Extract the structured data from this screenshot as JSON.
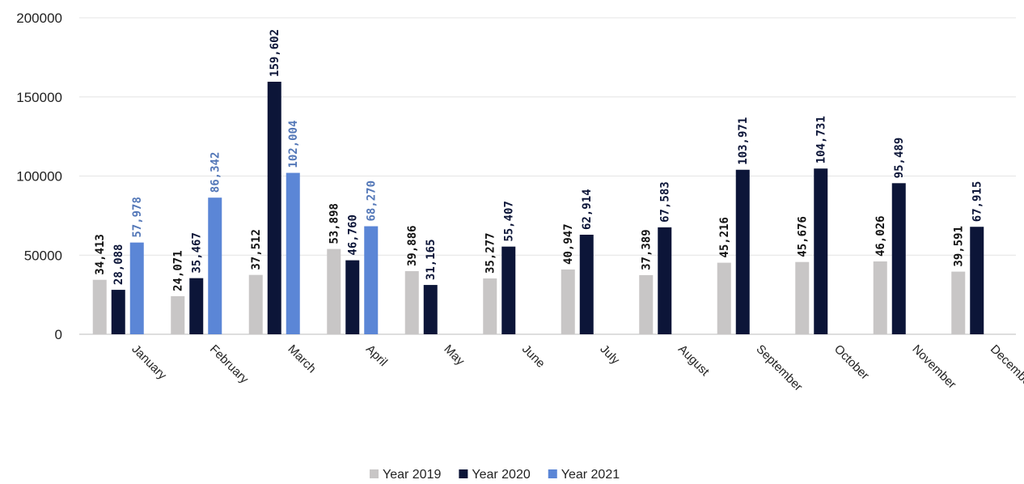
{
  "chart_data": {
    "type": "bar",
    "categories": [
      "January",
      "February",
      "March",
      "April",
      "May",
      "June",
      "July",
      "August",
      "September",
      "October",
      "November",
      "December"
    ],
    "series": [
      {
        "name": "Year 2019",
        "color": "#c8c6c6",
        "label_color": "#111111",
        "values": [
          34413,
          24071,
          37512,
          53898,
          39886,
          35277,
          40947,
          37389,
          45216,
          45676,
          46026,
          39591
        ],
        "labels": [
          "34,413",
          "24,071",
          "37,512",
          "53,898",
          "39,886",
          "35,277",
          "40,947",
          "37,389",
          "45,216",
          "45,676",
          "46,026",
          "39,591"
        ]
      },
      {
        "name": "Year 2020",
        "color": "#0c1538",
        "label_color": "#0c1538",
        "values": [
          28088,
          35467,
          159602,
          46760,
          31165,
          55407,
          62914,
          67583,
          103971,
          104731,
          95489,
          67915
        ],
        "labels": [
          "28,088",
          "35,467",
          "159,602",
          "46,760",
          "31,165",
          "55,407",
          "62,914",
          "67,583",
          "103,971",
          "104,731",
          "95,489",
          "67,915"
        ]
      },
      {
        "name": "Year 2021",
        "color": "#5b86d6",
        "label_color": "#5478b8",
        "values": [
          57978,
          86342,
          102004,
          68270,
          null,
          null,
          null,
          null,
          null,
          null,
          null,
          null
        ],
        "labels": [
          "57,978",
          "86,342",
          "102,004",
          "68,270",
          "",
          "",
          "",
          "",
          "",
          "",
          "",
          ""
        ]
      }
    ],
    "title": "",
    "xlabel": "",
    "ylabel": "",
    "ylim": [
      0,
      200000
    ],
    "yticks": [
      "0",
      "50000",
      "100000",
      "150000",
      "200000"
    ],
    "grid": true,
    "legend_position": "bottom"
  }
}
